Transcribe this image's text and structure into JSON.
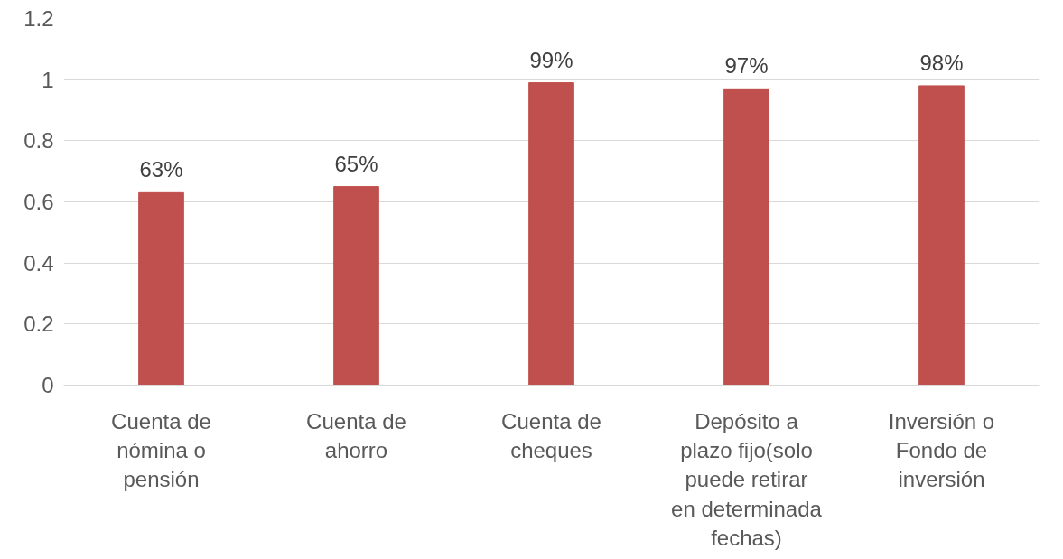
{
  "chart_data": {
    "type": "bar",
    "categories": [
      "Cuenta de nómina o pensión",
      "Cuenta de ahorro",
      "Cuenta de cheques",
      "Depósito a plazo fijo(solo puede retirar en determinada fechas)",
      "Inversión o Fondo de inversión"
    ],
    "values": [
      0.63,
      0.65,
      0.99,
      0.97,
      0.98
    ],
    "value_labels": [
      "63%",
      "65%",
      "99%",
      "97%",
      "98%"
    ],
    "color": "#c0504d",
    "ylim": [
      0,
      1.2
    ],
    "yticks": [
      0,
      0.2,
      0.4,
      0.6,
      0.8,
      1,
      1.2
    ],
    "grid": "y"
  }
}
